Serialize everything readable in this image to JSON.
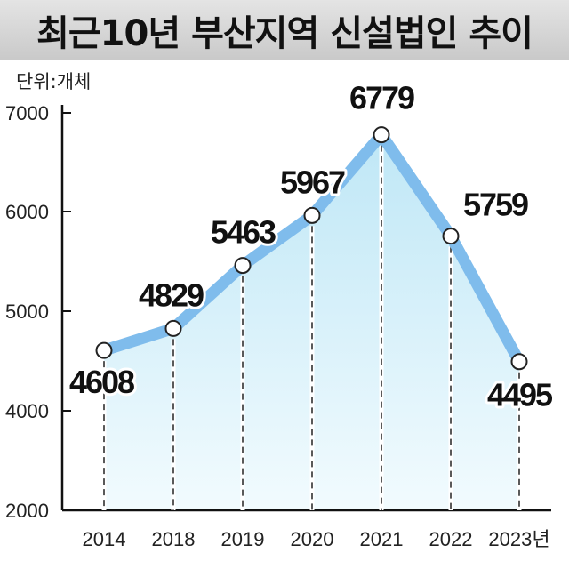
{
  "header": {
    "title": "최근10년 부산지역 신설법인 추이"
  },
  "unit_label": "단위:개체",
  "colors": {
    "line": "#7fbcec",
    "area_top": "#bfe7f6",
    "area_bottom": "#f2fbfe",
    "title_bg": "#d6d6d6"
  },
  "chart_data": {
    "type": "area",
    "title": "최근10년 부산지역 신설법인 추이",
    "categories": [
      "2014",
      "2018",
      "2019",
      "2020",
      "2021",
      "2022",
      "2023년"
    ],
    "series": [
      {
        "values": [
          4608,
          4829,
          5463,
          5967,
          6779,
          5759,
          4495
        ]
      }
    ],
    "y_ticks": [
      2000,
      4000,
      5000,
      6000,
      7000
    ],
    "ylim": [
      2000,
      7000
    ],
    "xlabel": "",
    "ylabel": "",
    "grid": false
  }
}
